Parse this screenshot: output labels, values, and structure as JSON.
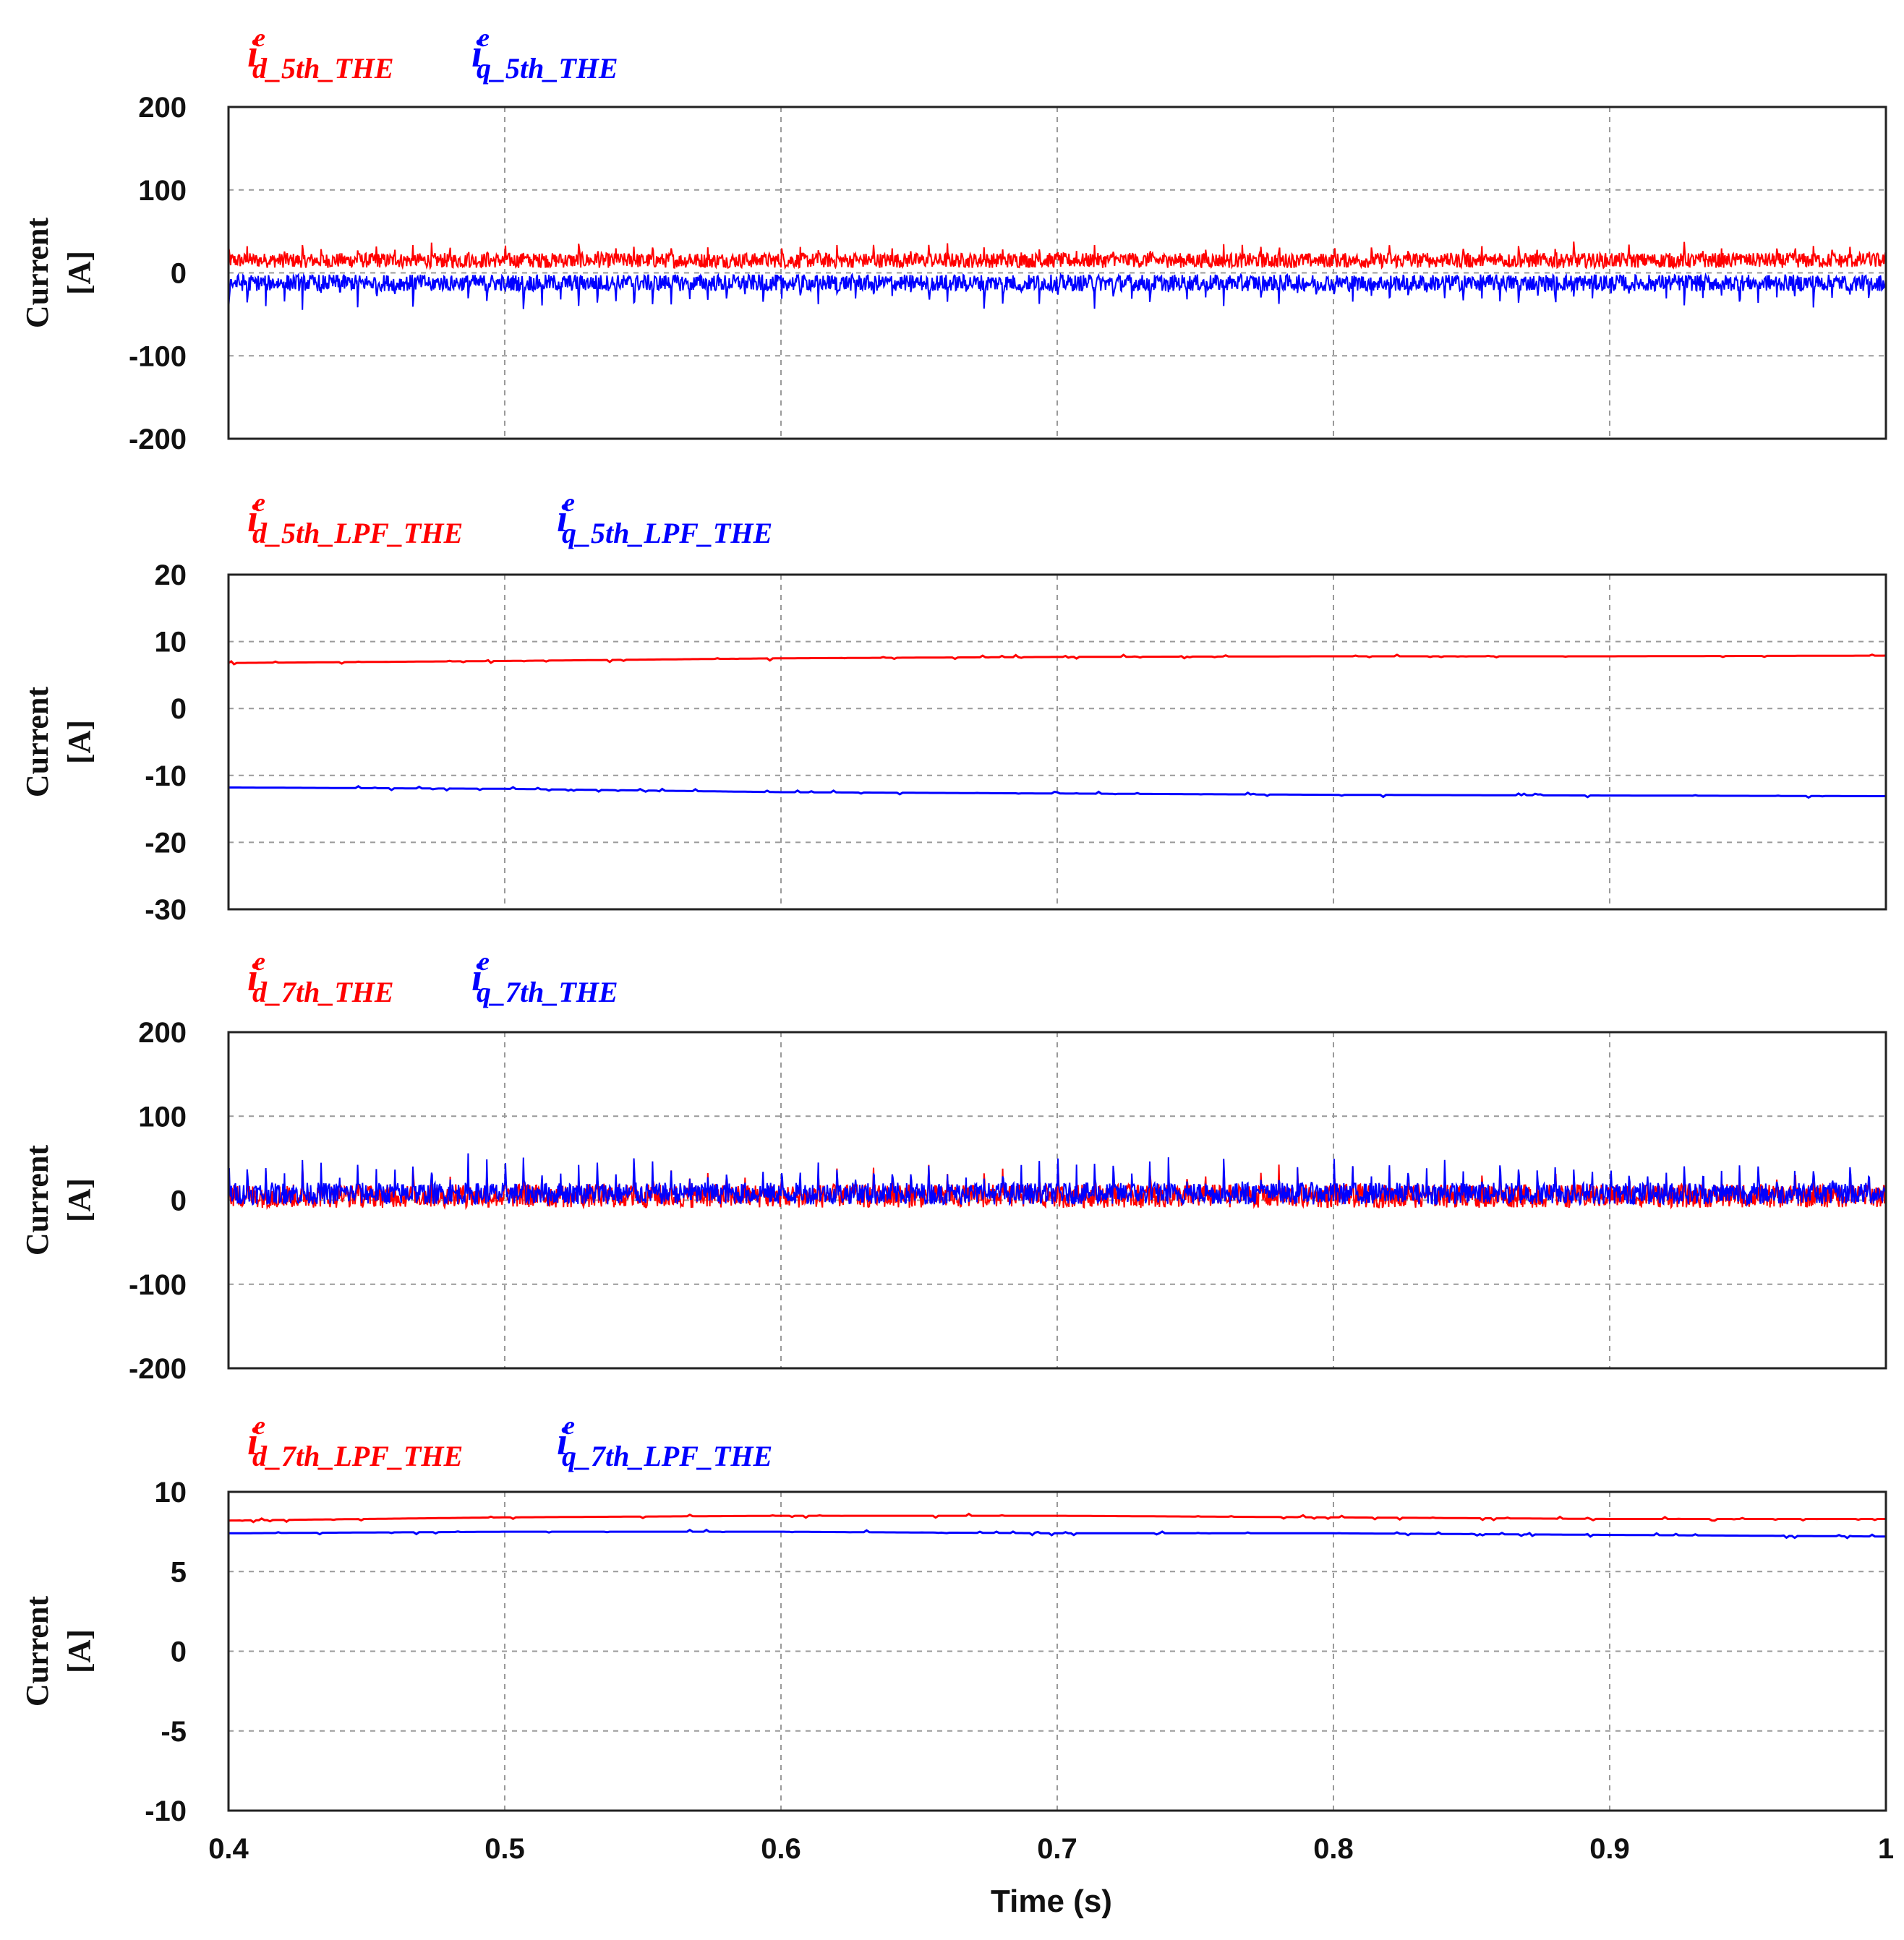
{
  "colors": {
    "d_series": "#ff0000",
    "q_series": "#0000ff",
    "grid": "#9a9a9a",
    "frame": "#222222"
  },
  "chart_data": [
    {
      "type": "line",
      "title": "",
      "ylabel": "Current [A]",
      "ylabel_line1": "Current",
      "ylabel_line2": "[A]",
      "ylim": [
        -200,
        200
      ],
      "yticks": [
        200,
        100,
        0,
        -100,
        -200
      ],
      "ytick_labels": [
        "200",
        "100",
        "0",
        "-100",
        "-200"
      ],
      "xlim": [
        0.4,
        1.0
      ],
      "series": [
        {
          "name": "i^e_d_5th_THE",
          "base": "i",
          "sup": "e",
          "sub": "d_5th_THE",
          "color": "#ff0000",
          "mean": 15,
          "noise": 9,
          "spike": 18,
          "spike_dir": 1,
          "period": 0.00667
        },
        {
          "name": "i^e_q_5th_THE",
          "base": "i",
          "sup": "e",
          "sub": "q_5th_THE",
          "color": "#0000ff",
          "mean": -12,
          "noise": 10,
          "spike": -30,
          "spike_dir": -1,
          "period": 0.00667
        }
      ]
    },
    {
      "type": "line",
      "title": "",
      "ylabel": "Current [A]",
      "ylabel_line1": "Current",
      "ylabel_line2": "[A]",
      "ylim": [
        -30,
        20
      ],
      "yticks": [
        20,
        10,
        0,
        -10,
        -20,
        -30
      ],
      "ytick_labels": [
        "20",
        "10",
        "0",
        "-10",
        "-20",
        "-30"
      ],
      "xlim": [
        0.4,
        1.0
      ],
      "series": [
        {
          "name": "i^e_d_5th_LPF_THE",
          "base": "i",
          "sup": "e",
          "sub": "d_5th_LPF_THE",
          "color": "#ff0000",
          "x": [
            0.4,
            0.5,
            0.6,
            0.7,
            0.8,
            0.9,
            1.0
          ],
          "values": [
            6.8,
            7.1,
            7.5,
            7.7,
            7.8,
            7.8,
            7.9
          ]
        },
        {
          "name": "i^e_q_5th_LPF_THE",
          "base": "i",
          "sup": "e",
          "sub": "q_5th_LPF_THE",
          "color": "#0000ff",
          "x": [
            0.4,
            0.5,
            0.6,
            0.7,
            0.8,
            0.9,
            1.0
          ],
          "values": [
            -11.8,
            -12.0,
            -12.5,
            -12.7,
            -12.9,
            -13.0,
            -13.1
          ]
        }
      ]
    },
    {
      "type": "line",
      "title": "",
      "ylabel": "Current [A]",
      "ylabel_line1": "Current",
      "ylabel_line2": "[A]",
      "ylim": [
        -200,
        200
      ],
      "yticks": [
        200,
        100,
        0,
        -100,
        -200
      ],
      "ytick_labels": [
        "200",
        "100",
        "0",
        "-100",
        "-200"
      ],
      "xlim": [
        0.4,
        1.0
      ],
      "series": [
        {
          "name": "i^e_d_7th_THE",
          "base": "i",
          "sup": "e",
          "sub": "d_7th_THE",
          "color": "#ff0000",
          "mean": 5,
          "noise": 14,
          "spike": 30,
          "spike_dir": 1,
          "period": 0.00667
        },
        {
          "name": "i^e_q_7th_THE",
          "base": "i",
          "sup": "e",
          "sub": "q_7th_THE",
          "color": "#0000ff",
          "mean": 8,
          "noise": 13,
          "spike": 40,
          "spike_dir": 1,
          "period": 0.00667
        }
      ]
    },
    {
      "type": "line",
      "title": "",
      "ylabel": "Current [A]",
      "ylabel_line1": "Current",
      "ylabel_line2": "[A]",
      "ylim": [
        -10,
        10
      ],
      "yticks": [
        10,
        5,
        0,
        -5,
        -10
      ],
      "ytick_labels": [
        "10",
        "5",
        "0",
        "-5",
        "-10"
      ],
      "xlim": [
        0.4,
        1.0
      ],
      "xticks": [
        0.4,
        0.5,
        0.6,
        0.7,
        0.8,
        0.9,
        1.0
      ],
      "xtick_labels": [
        "0.4",
        "0.5",
        "0.6",
        "0.7",
        "0.8",
        "0.9",
        "1"
      ],
      "xlabel": "Time (s)",
      "series": [
        {
          "name": "i^e_d_7th_LPF_THE",
          "base": "i",
          "sup": "e",
          "sub": "d_7th_LPF_THE",
          "color": "#ff0000",
          "x": [
            0.4,
            0.5,
            0.6,
            0.7,
            0.8,
            0.9,
            1.0
          ],
          "values": [
            8.2,
            8.4,
            8.5,
            8.5,
            8.4,
            8.3,
            8.3
          ]
        },
        {
          "name": "i^e_q_7th_LPF_THE",
          "base": "i",
          "sup": "e",
          "sub": "q_7th_LPF_THE",
          "color": "#0000ff",
          "x": [
            0.4,
            0.5,
            0.6,
            0.7,
            0.8,
            0.9,
            1.0
          ],
          "values": [
            7.4,
            7.5,
            7.5,
            7.4,
            7.4,
            7.3,
            7.2
          ]
        }
      ]
    }
  ]
}
